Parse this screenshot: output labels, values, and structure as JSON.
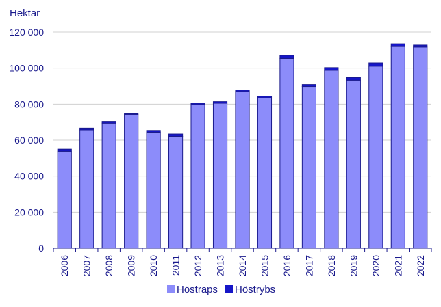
{
  "chart_data": {
    "type": "bar",
    "stacked": true,
    "unit_label": "Hektar",
    "categories": [
      "2006",
      "2007",
      "2008",
      "2009",
      "2010",
      "2011",
      "2012",
      "2013",
      "2014",
      "2015",
      "2016",
      "2017",
      "2018",
      "2019",
      "2020",
      "2021",
      "2022"
    ],
    "series": [
      {
        "name": "Höstraps",
        "color": "#8c8cfa",
        "values": [
          53800,
          65700,
          69400,
          74300,
          64400,
          62100,
          79800,
          80500,
          87000,
          83500,
          105400,
          89800,
          98800,
          93300,
          101100,
          112000,
          111700
        ]
      },
      {
        "name": "Höstrybs",
        "color": "#1616c8",
        "values": [
          1200,
          1000,
          1000,
          700,
          1000,
          1300,
          700,
          900,
          800,
          900,
          1700,
          1100,
          1500,
          1500,
          1800,
          1500,
          1100
        ]
      }
    ],
    "ylim": [
      0,
      120000
    ],
    "yticks": [
      0,
      20000,
      40000,
      60000,
      80000,
      100000,
      120000
    ],
    "ytick_labels": [
      "0",
      "20 000",
      "40 000",
      "60 000",
      "80 000",
      "100 000",
      "120 000"
    ],
    "grid": true,
    "legend_position": "bottom"
  }
}
